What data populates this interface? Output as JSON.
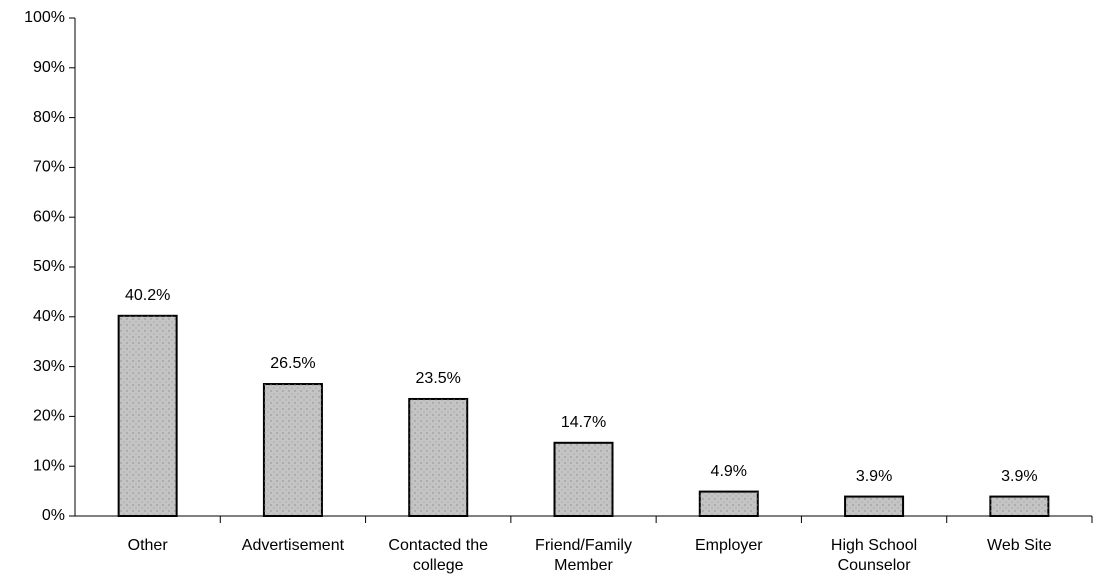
{
  "chart_data": {
    "type": "bar",
    "categories": [
      "Other",
      "Advertisement",
      "Contacted the college",
      "Friend/Family Member",
      "Employer",
      "High School Counselor",
      "Web Site"
    ],
    "values": [
      40.2,
      26.5,
      23.5,
      14.7,
      4.9,
      3.9,
      3.9
    ],
    "value_labels": [
      "40.2%",
      "26.5%",
      "23.5%",
      "14.7%",
      "4.9%",
      "3.9%",
      "3.9%"
    ],
    "color": "#c4c4c4",
    "ylim": [
      0,
      100
    ],
    "yticks": [
      {
        "value": 0,
        "label": "0%"
      },
      {
        "value": 10,
        "label": "10%"
      },
      {
        "value": 20,
        "label": "20%"
      },
      {
        "value": 30,
        "label": "30%"
      },
      {
        "value": 40,
        "label": "40%"
      },
      {
        "value": 50,
        "label": "50%"
      },
      {
        "value": 60,
        "label": "60%"
      },
      {
        "value": 70,
        "label": "70%"
      },
      {
        "value": 80,
        "label": "80%"
      },
      {
        "value": 90,
        "label": "90%"
      },
      {
        "value": 100,
        "label": "100%"
      }
    ],
    "grid": false
  }
}
